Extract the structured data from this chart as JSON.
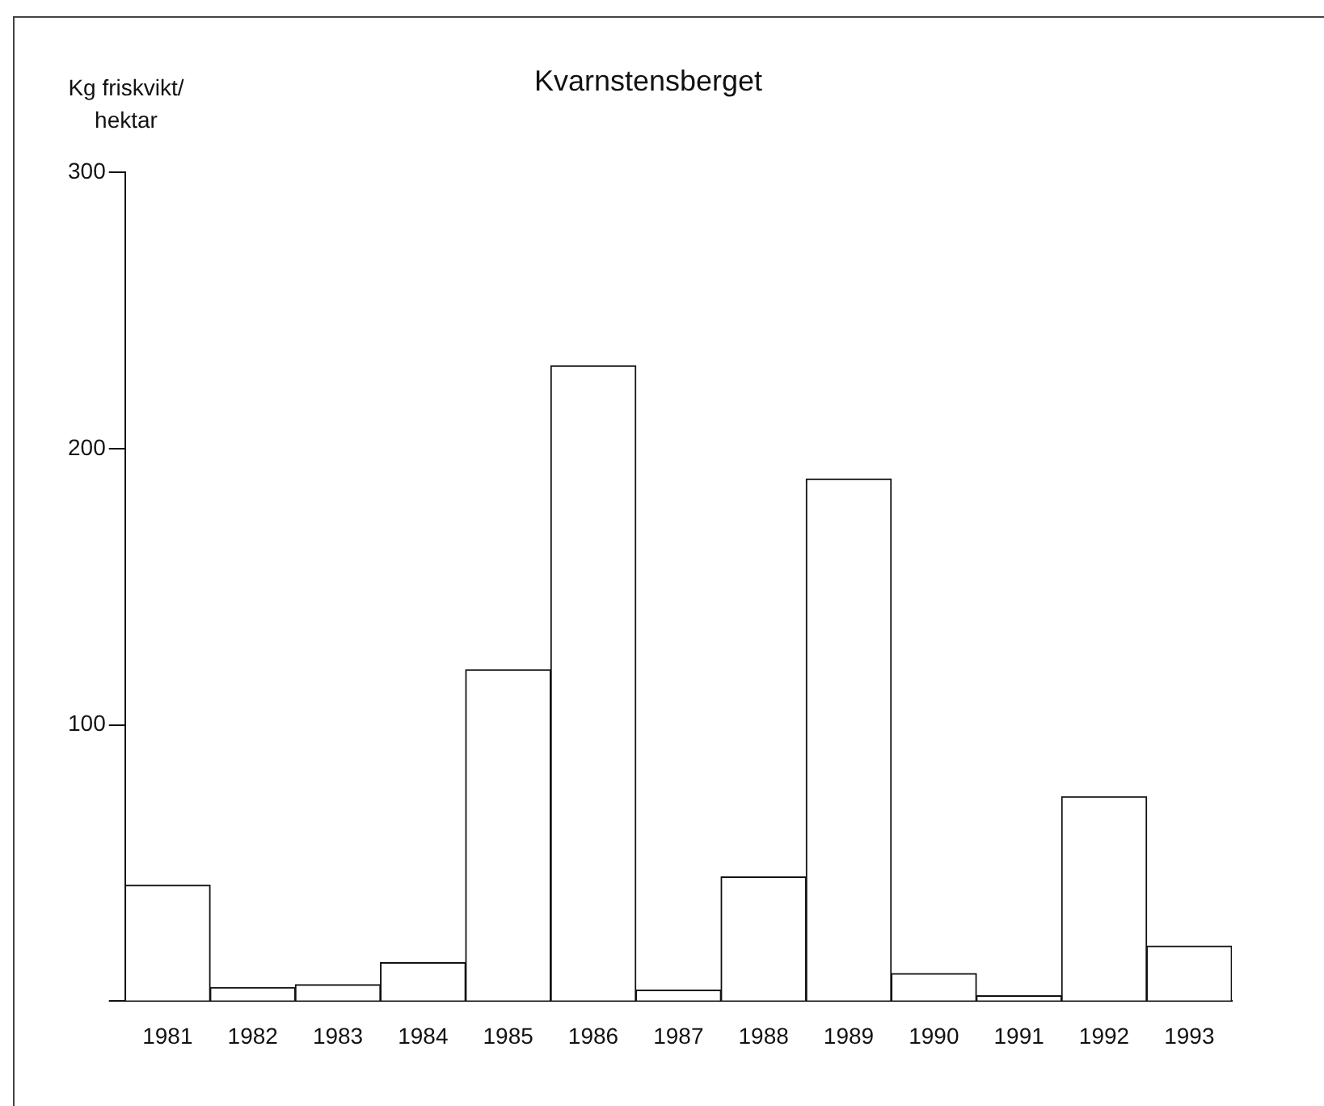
{
  "chart_data": {
    "type": "bar",
    "title": "Kvarnstensberget",
    "ylabel": "Kg friskvikt/hektar",
    "categories": [
      "1981",
      "1982",
      "1983",
      "1984",
      "1985",
      "1986",
      "1987",
      "1988",
      "1989",
      "1990",
      "1991",
      "1992",
      "1993"
    ],
    "values": [
      42,
      5,
      6,
      14,
      120,
      230,
      4,
      45,
      189,
      10,
      2,
      74,
      20
    ],
    "color": "#ffffff",
    "ylim": [
      0,
      300
    ],
    "yticks": [
      {
        "value": 0,
        "label": null
      },
      100,
      200,
      300
    ],
    "grid": false,
    "legend": false
  }
}
